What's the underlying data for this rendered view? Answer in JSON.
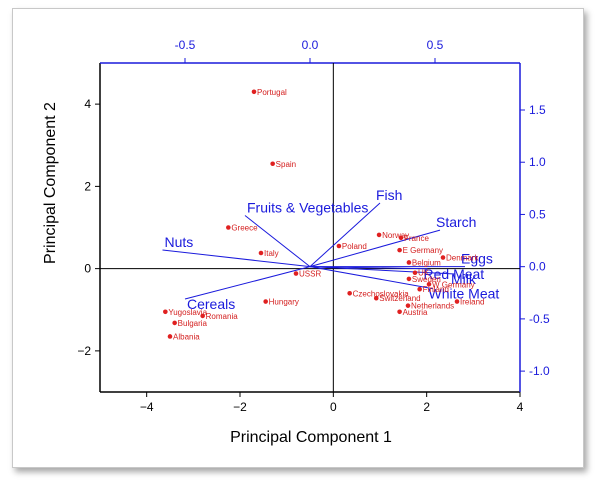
{
  "colors": {
    "points": "#e02020",
    "point_labels": "#d42020",
    "loadings": "#1a1adc",
    "primary_axis": "#000000",
    "secondary_axis": "#1a1adc"
  },
  "chart_data": {
    "type": "scatter",
    "subtype": "biplot",
    "xlabel": "Principal Component 1",
    "ylabel": "Principal Component 2",
    "xlim": [
      -5,
      4
    ],
    "ylim": [
      -3,
      5
    ],
    "xticks": [
      -4,
      -2,
      0,
      2,
      4
    ],
    "yticks": [
      -2,
      0,
      2,
      4
    ],
    "x2lim": [
      -0.84,
      0.84
    ],
    "y2lim": [
      -1.2,
      1.95
    ],
    "x2ticks": [
      "-0.5",
      "0.0",
      "0.5"
    ],
    "x2tick_values": [
      -0.5,
      0.0,
      0.5
    ],
    "y2ticks": [
      "-1.0",
      "-0.5",
      "0.0",
      "0.5",
      "1.0",
      "1.5"
    ],
    "y2tick_values": [
      -1.0,
      -0.5,
      0.0,
      0.5,
      1.0,
      1.5
    ],
    "grid": false,
    "reference_lines": {
      "x": 0,
      "y": 0
    },
    "scores": [
      {
        "label": "Portugal",
        "x": -1.7,
        "y": 4.3
      },
      {
        "label": "Spain",
        "x": -1.3,
        "y": 2.55
      },
      {
        "label": "Greece",
        "x": -2.25,
        "y": 1.0
      },
      {
        "label": "Italy",
        "x": -1.55,
        "y": 0.38
      },
      {
        "label": "USSR",
        "x": -0.8,
        "y": -0.12
      },
      {
        "label": "Hungary",
        "x": -1.45,
        "y": -0.8
      },
      {
        "label": "Yugoslavia",
        "x": -3.6,
        "y": -1.05
      },
      {
        "label": "Romania",
        "x": -2.8,
        "y": -1.15
      },
      {
        "label": "Bulgaria",
        "x": -3.4,
        "y": -1.32
      },
      {
        "label": "Albania",
        "x": -3.5,
        "y": -1.65
      },
      {
        "label": "Poland",
        "x": 0.12,
        "y": 0.55
      },
      {
        "label": "Norway",
        "x": 0.98,
        "y": 0.82
      },
      {
        "label": "France",
        "x": 1.45,
        "y": 0.75
      },
      {
        "label": "E Germany",
        "x": 1.42,
        "y": 0.45
      },
      {
        "label": "Denmark",
        "x": 2.35,
        "y": 0.27
      },
      {
        "label": "Belgium",
        "x": 1.62,
        "y": 0.15
      },
      {
        "label": "UK",
        "x": 1.75,
        "y": -0.1
      },
      {
        "label": "Sweden",
        "x": 1.62,
        "y": -0.25
      },
      {
        "label": "W Germany",
        "x": 2.05,
        "y": -0.38
      },
      {
        "label": "Finland",
        "x": 1.85,
        "y": -0.5
      },
      {
        "label": "Czechoslovakia",
        "x": 0.35,
        "y": -0.6
      },
      {
        "label": "Switzerland",
        "x": 0.92,
        "y": -0.72
      },
      {
        "label": "Netherlands",
        "x": 1.6,
        "y": -0.9
      },
      {
        "label": "Ireland",
        "x": 2.65,
        "y": -0.8
      },
      {
        "label": "Austria",
        "x": 1.42,
        "y": -1.05
      }
    ],
    "loadings": [
      {
        "label": "Fish",
        "x2": 0.28,
        "y2": 0.61
      },
      {
        "label": "Fruits & Vegetables",
        "x2": -0.26,
        "y2": 0.49
      },
      {
        "label": "Starch",
        "x2": 0.52,
        "y2": 0.35
      },
      {
        "label": "Nuts",
        "x2": -0.59,
        "y2": 0.16
      },
      {
        "label": "Red Meat",
        "x2": 0.47,
        "y2": -0.02
      },
      {
        "label": "Eggs",
        "x2": 0.62,
        "y2": 0.0
      },
      {
        "label": "Milk",
        "x2": 0.58,
        "y2": -0.07
      },
      {
        "label": "White Meat",
        "x2": 0.49,
        "y2": -0.21
      },
      {
        "label": "Cereals",
        "x2": -0.5,
        "y2": -0.31
      }
    ]
  }
}
